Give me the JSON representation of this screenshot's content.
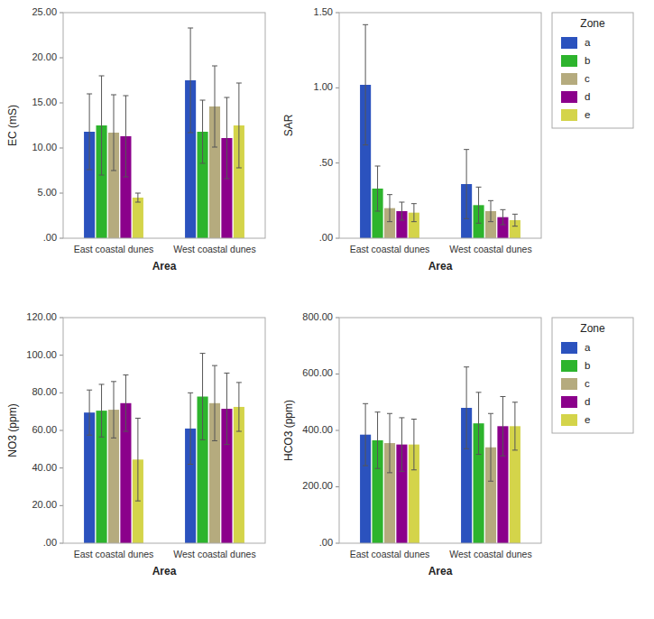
{
  "chart_data": [
    {
      "type": "bar",
      "ylabel": "EC (mS)",
      "xlabel": "Area",
      "grid": false,
      "categories": [
        "East coastal dunes",
        "West coastal dunes"
      ],
      "ylim": [
        0,
        25
      ],
      "yticks": [
        {
          "value": 0,
          "label": ".00"
        },
        {
          "value": 5,
          "label": "5.00"
        },
        {
          "value": 10,
          "label": "10.00"
        },
        {
          "value": 15,
          "label": "15.00"
        },
        {
          "value": 20,
          "label": "20.00"
        },
        {
          "value": 25,
          "label": "25.00"
        }
      ],
      "series": [
        {
          "name": "a",
          "color": "#2b52be",
          "values": [
            11.8,
            17.5
          ],
          "errors": [
            4.2,
            5.8
          ]
        },
        {
          "name": "b",
          "color": "#2db42d",
          "values": [
            12.5,
            11.8
          ],
          "errors": [
            5.5,
            3.5
          ]
        },
        {
          "name": "c",
          "color": "#b5ab7e",
          "values": [
            11.7,
            14.6
          ],
          "errors": [
            4.2,
            4.5
          ]
        },
        {
          "name": "d",
          "color": "#8b008b",
          "values": [
            11.3,
            11.1
          ],
          "errors": [
            4.5,
            4.5
          ]
        },
        {
          "name": "e",
          "color": "#d4d44a",
          "values": [
            4.5,
            12.5
          ],
          "errors": [
            0.5,
            4.7
          ]
        }
      ]
    },
    {
      "type": "bar",
      "ylabel": "SAR",
      "xlabel": "Area",
      "grid": false,
      "legend": "right",
      "legend_title": "Zone",
      "categories": [
        "East coastal dunes",
        "West coastal dunes"
      ],
      "ylim": [
        0,
        1.5
      ],
      "yticks": [
        {
          "value": 0,
          "label": ".00"
        },
        {
          "value": 0.5,
          "label": ".50"
        },
        {
          "value": 1.0,
          "label": "1.00"
        },
        {
          "value": 1.5,
          "label": "1.50"
        }
      ],
      "series": [
        {
          "name": "a",
          "color": "#2b52be",
          "values": [
            1.02,
            0.36
          ],
          "errors": [
            0.4,
            0.23
          ]
        },
        {
          "name": "b",
          "color": "#2db42d",
          "values": [
            0.33,
            0.22
          ],
          "errors": [
            0.15,
            0.12
          ]
        },
        {
          "name": "c",
          "color": "#b5ab7e",
          "values": [
            0.2,
            0.18
          ],
          "errors": [
            0.09,
            0.07
          ]
        },
        {
          "name": "d",
          "color": "#8b008b",
          "values": [
            0.18,
            0.14
          ],
          "errors": [
            0.06,
            0.05
          ]
        },
        {
          "name": "e",
          "color": "#d4d44a",
          "values": [
            0.17,
            0.12
          ],
          "errors": [
            0.06,
            0.04
          ]
        }
      ]
    },
    {
      "type": "bar",
      "ylabel": "NO3 (ppm)",
      "xlabel": "Area",
      "grid": false,
      "categories": [
        "East coastal dunes",
        "West coastal dunes"
      ],
      "ylim": [
        0,
        120
      ],
      "yticks": [
        {
          "value": 0,
          "label": ".00"
        },
        {
          "value": 20,
          "label": "20.00"
        },
        {
          "value": 40,
          "label": "40.00"
        },
        {
          "value": 60,
          "label": "60.00"
        },
        {
          "value": 80,
          "label": "80.00"
        },
        {
          "value": 100,
          "label": "100.00"
        },
        {
          "value": 120,
          "label": "120.00"
        }
      ],
      "series": [
        {
          "name": "a",
          "color": "#2b52be",
          "values": [
            69.5,
            61.0
          ],
          "errors": [
            12.0,
            19.0
          ]
        },
        {
          "name": "b",
          "color": "#2db42d",
          "values": [
            70.5,
            78.0
          ],
          "errors": [
            14.0,
            23.0
          ]
        },
        {
          "name": "c",
          "color": "#b5ab7e",
          "values": [
            71.0,
            74.5
          ],
          "errors": [
            15.0,
            20.0
          ]
        },
        {
          "name": "d",
          "color": "#8b008b",
          "values": [
            74.5,
            71.5
          ],
          "errors": [
            15.0,
            19.0
          ]
        },
        {
          "name": "e",
          "color": "#d4d44a",
          "values": [
            44.5,
            72.5
          ],
          "errors": [
            22.0,
            13.0
          ]
        }
      ]
    },
    {
      "type": "bar",
      "ylabel": "HCO3 (ppm)",
      "xlabel": "Area",
      "grid": false,
      "legend": "right",
      "legend_title": "Zone",
      "categories": [
        "East coastal dunes",
        "West coastal dunes"
      ],
      "ylim": [
        0,
        800
      ],
      "yticks": [
        {
          "value": 0,
          "label": ".00"
        },
        {
          "value": 200,
          "label": "200.00"
        },
        {
          "value": 400,
          "label": "400.00"
        },
        {
          "value": 600,
          "label": "600.00"
        },
        {
          "value": 800,
          "label": "800.00"
        }
      ],
      "series": [
        {
          "name": "a",
          "color": "#2b52be",
          "values": [
            385,
            480
          ],
          "errors": [
            110,
            145
          ]
        },
        {
          "name": "b",
          "color": "#2db42d",
          "values": [
            365,
            425
          ],
          "errors": [
            100,
            110
          ]
        },
        {
          "name": "c",
          "color": "#b5ab7e",
          "values": [
            355,
            340
          ],
          "errors": [
            105,
            120
          ]
        },
        {
          "name": "d",
          "color": "#8b008b",
          "values": [
            350,
            415
          ],
          "errors": [
            95,
            105
          ]
        },
        {
          "name": "e",
          "color": "#d4d44a",
          "values": [
            350,
            415
          ],
          "errors": [
            90,
            85
          ]
        }
      ]
    }
  ]
}
